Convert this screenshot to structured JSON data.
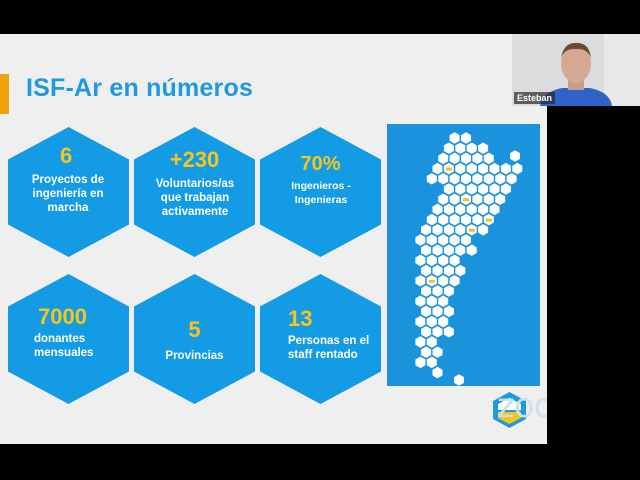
{
  "slide": {
    "title": "ISF-Ar en números",
    "stats": [
      {
        "number": "6",
        "text": "Proyectos de ingeniería en marcha"
      },
      {
        "number": "+230",
        "text": "Voluntarios/as que trabajan activamente"
      },
      {
        "number": "70%",
        "text": "Ingenieros - Ingenieras"
      },
      {
        "number": "7000",
        "text": "donantes mensuales"
      },
      {
        "number": "5",
        "text": "Provincias"
      },
      {
        "number": "13",
        "text": "Personas en el staff rentado"
      }
    ],
    "map_label": "argentina-hexmap",
    "colors": {
      "accent": "#f2a20a",
      "hex": "#149be6",
      "number": "#f8c51b",
      "title": "#1f9ae0"
    }
  },
  "video": {
    "participant_name": "Esteban"
  },
  "watermark": {
    "text": "zoom"
  }
}
